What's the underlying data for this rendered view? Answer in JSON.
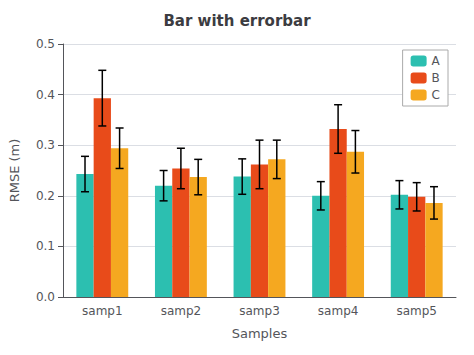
{
  "chart_data": {
    "type": "bar",
    "title": "Bar with errorbar",
    "xlabel": "Samples",
    "ylabel": "RMSE (m)",
    "categories": [
      "samp1",
      "samp2",
      "samp3",
      "samp4",
      "samp5"
    ],
    "series": [
      {
        "name": "A",
        "color": "#2CBFB0",
        "values": [
          0.243,
          0.22,
          0.238,
          0.2,
          0.202
        ],
        "errors": [
          0.035,
          0.03,
          0.035,
          0.028,
          0.028
        ]
      },
      {
        "name": "B",
        "color": "#E84B1A",
        "values": [
          0.393,
          0.254,
          0.262,
          0.332,
          0.198
        ],
        "errors": [
          0.055,
          0.04,
          0.048,
          0.048,
          0.028
        ]
      },
      {
        "name": "C",
        "color": "#F5A820",
        "values": [
          0.294,
          0.237,
          0.272,
          0.287,
          0.186
        ],
        "errors": [
          0.04,
          0.035,
          0.038,
          0.042,
          0.032
        ]
      }
    ],
    "ylim": [
      0,
      0.5
    ],
    "yticks": [
      {
        "value": 0,
        "label": "0.0"
      },
      0.1,
      0.2,
      0.3,
      0.4,
      0.5
    ],
    "grid": true,
    "legend": "upper right"
  }
}
